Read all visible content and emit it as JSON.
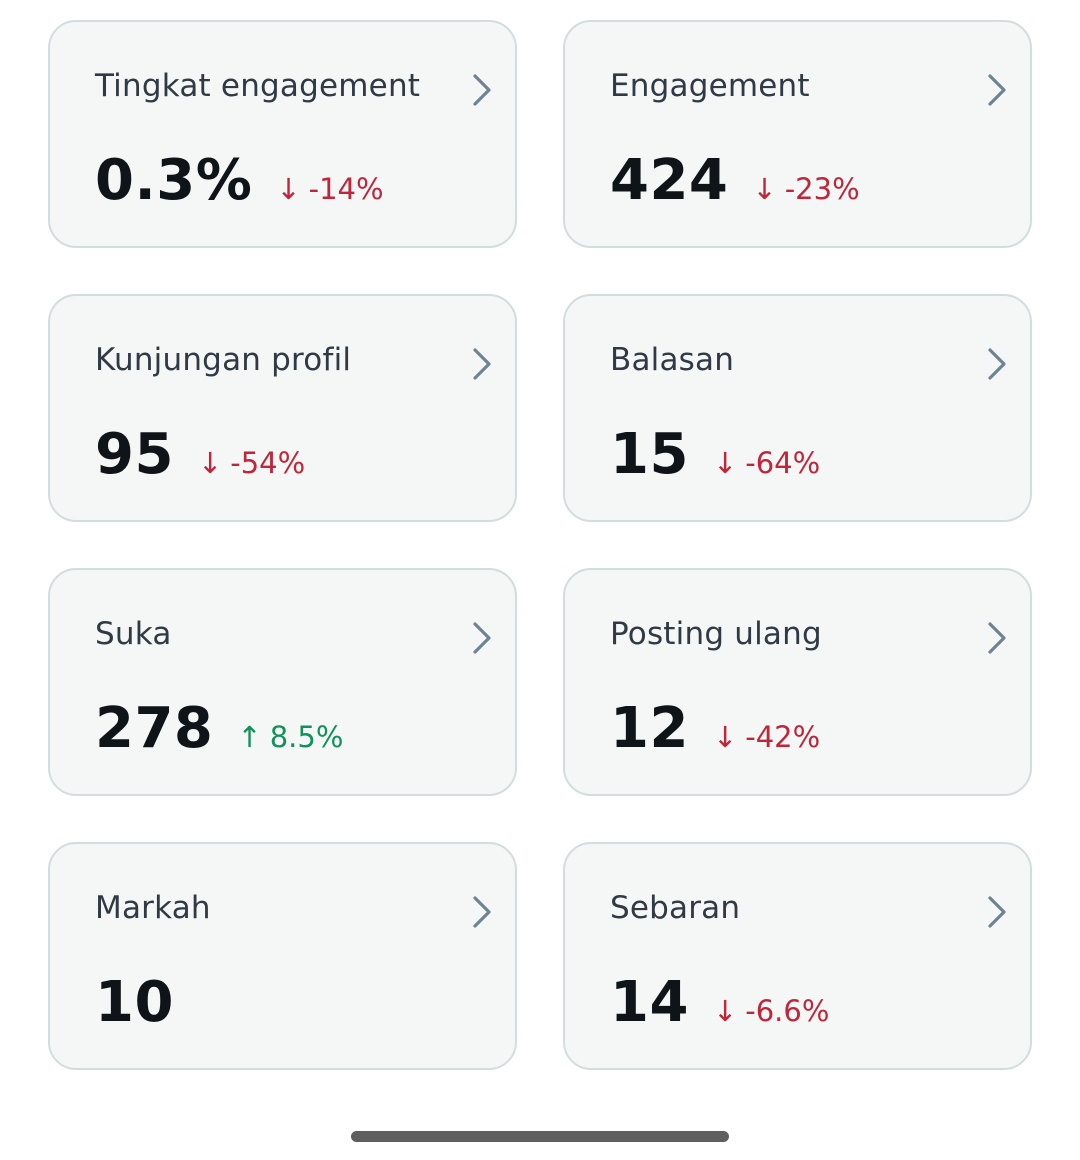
{
  "colors": {
    "card_background": "#f5f7f7",
    "card_border": "#d3dcdf",
    "label": "#2f3a44",
    "value": "#0f1419",
    "negative": "#c0263a",
    "positive": "#12925a",
    "chevron": "#6e8394"
  },
  "icons": {
    "chevron": "chevron-right-icon",
    "down_arrow": "arrow-down-icon",
    "up_arrow": "arrow-up-icon"
  },
  "cards": [
    {
      "label": "Tingkat engagement",
      "value": "0.3%",
      "delta": {
        "arrow": "↓",
        "text": "-14%"
      }
    },
    {
      "label": "Engagement",
      "value": "424",
      "delta": {
        "arrow": "↓",
        "text": "-23%"
      }
    },
    {
      "label": "Kunjungan profil",
      "value": "95",
      "delta": {
        "arrow": "↓",
        "text": "-54%"
      }
    },
    {
      "label": "Balasan",
      "value": "15",
      "delta": {
        "arrow": "↓",
        "text": "-64%"
      }
    },
    {
      "label": "Suka",
      "value": "278",
      "delta": {
        "arrow": "↑",
        "text": "8.5%"
      }
    },
    {
      "label": "Posting ulang",
      "value": "12",
      "delta": {
        "arrow": "↓",
        "text": "-42%"
      }
    },
    {
      "label": "Markah",
      "value": "10"
    },
    {
      "label": "Sebaran",
      "value": "14",
      "delta": {
        "arrow": "↓",
        "text": "-6.6%"
      }
    }
  ]
}
